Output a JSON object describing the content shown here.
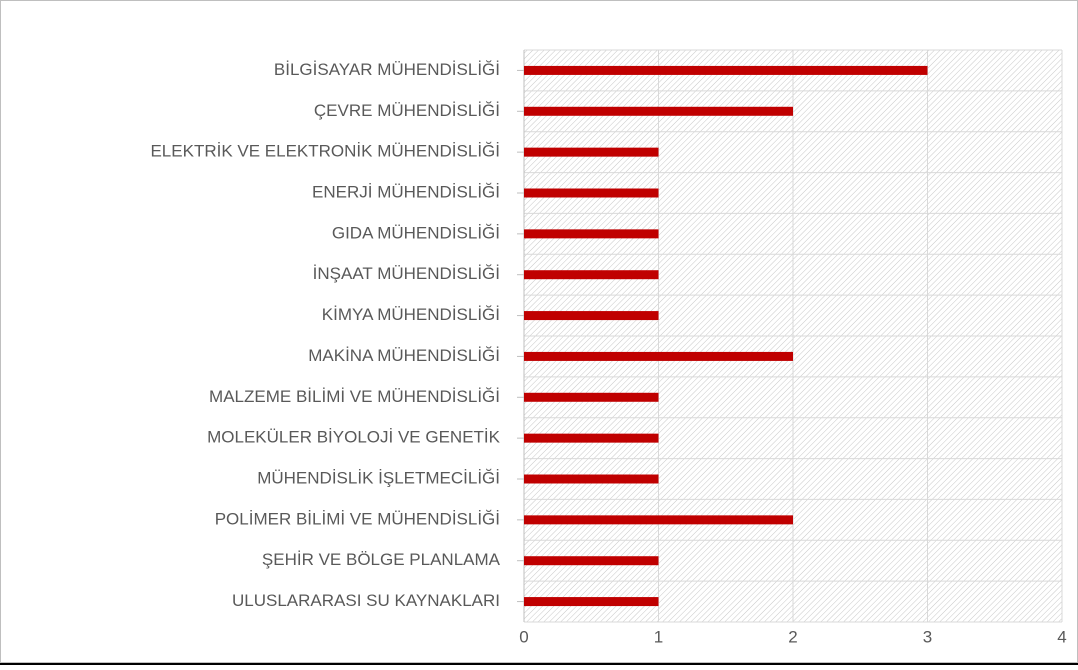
{
  "chart_data": {
    "type": "bar",
    "orientation": "horizontal",
    "categories": [
      "BİLGİSAYAR MÜHENDİSLİĞİ",
      "ÇEVRE MÜHENDİSLİĞİ",
      "ELEKTRİK VE ELEKTRONİK MÜHENDİSLİĞİ",
      "ENERJİ MÜHENDİSLİĞİ",
      "GIDA MÜHENDİSLİĞİ",
      "İNŞAAT MÜHENDİSLİĞİ",
      "KİMYA MÜHENDİSLİĞİ",
      "MAKİNA MÜHENDİSLİĞİ",
      "MALZEME BİLİMİ VE MÜHENDİSLİĞİ",
      "MOLEKÜLER BİYOLOJİ VE GENETİK",
      "MÜHENDİSLİK İŞLETMECİLİĞİ",
      "POLİMER BİLİMİ VE MÜHENDİSLİĞİ",
      "ŞEHİR VE BÖLGE PLANLAMA",
      "ULUSLARARASI SU KAYNAKLARI"
    ],
    "values": [
      3,
      2,
      1,
      1,
      1,
      1,
      1,
      2,
      1,
      1,
      1,
      2,
      1,
      1
    ],
    "color": "#c00000",
    "xlim": [
      0,
      4
    ],
    "xticks": [
      0,
      1,
      2,
      3,
      4
    ],
    "grid": true
  }
}
